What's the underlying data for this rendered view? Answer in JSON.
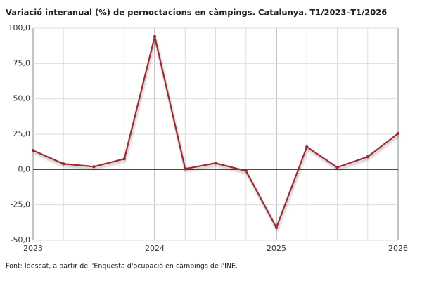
{
  "chart_data": {
    "type": "line",
    "title": "Variació interanual (%) de pernoctacions en càmpings. Catalunya. T1/2023–T1/2026",
    "source": "Font: Idescat, a partir de l'Enquesta d'ocupació en càmpings de l'INE.",
    "categories": [
      "2023",
      null,
      null,
      null,
      "2024",
      null,
      null,
      null,
      "2025",
      null,
      null,
      null,
      "2026"
    ],
    "series": [
      {
        "name": "Variació interanual",
        "color": "#9e2a33",
        "values": [
          13.5,
          4,
          2,
          7.5,
          94,
          0.5,
          4.5,
          -1,
          -41,
          16,
          1.5,
          9,
          25.5
        ]
      }
    ],
    "ylim": [
      -50,
      100
    ],
    "yticks": [
      {
        "value": -50,
        "label": "-50,0"
      },
      {
        "value": -25,
        "label": "-25,0"
      },
      {
        "value": 0,
        "label": "0,0"
      },
      {
        "value": 25,
        "label": "25,0"
      },
      {
        "value": 50,
        "label": "50,0"
      },
      {
        "value": 75,
        "label": "75,0"
      },
      {
        "value": 100,
        "label": "100,0"
      }
    ],
    "grid": true
  }
}
